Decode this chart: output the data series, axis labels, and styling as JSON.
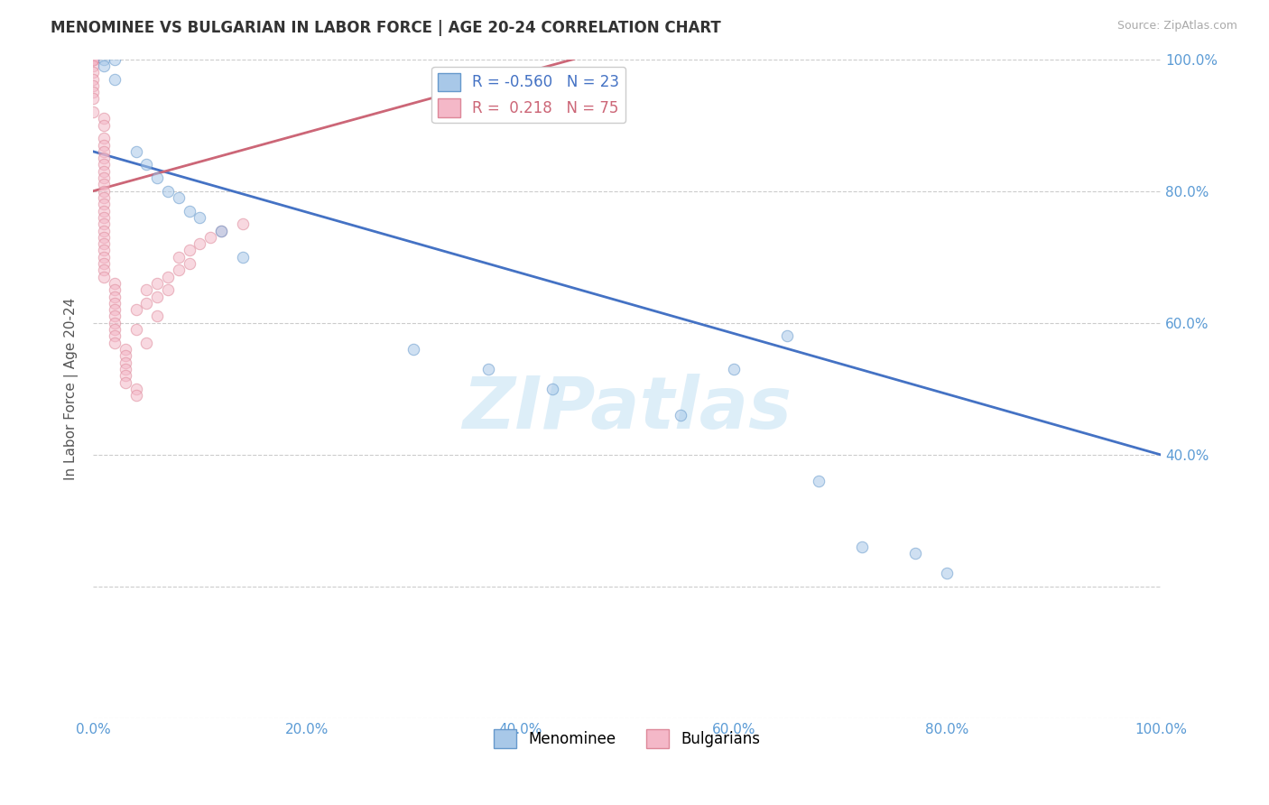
{
  "title": "MENOMINEE VS BULGARIAN IN LABOR FORCE | AGE 20-24 CORRELATION CHART",
  "source": "Source: ZipAtlas.com",
  "ylabel": "In Labor Force | Age 20-24",
  "xlim": [
    0.0,
    1.0
  ],
  "ylim": [
    0.0,
    1.0
  ],
  "xtick_vals": [
    0.0,
    0.2,
    0.4,
    0.6,
    0.8,
    1.0
  ],
  "xtick_labels": [
    "0.0%",
    "20.0%",
    "40.0%",
    "60.0%",
    "80.0%",
    "100.0%"
  ],
  "right_ytick_vals": [
    0.4,
    0.6,
    0.8,
    1.0
  ],
  "right_ytick_labels": [
    "40.0%",
    "60.0%",
    "80.0%",
    "100.0%"
  ],
  "menominee_color": "#a8c8e8",
  "bulgarian_color": "#f4b8c8",
  "menominee_edge_color": "#6699cc",
  "bulgarian_edge_color": "#dd8899",
  "trend_menominee_color": "#4472c4",
  "trend_bulgarian_color": "#cc6677",
  "R_menominee": -0.56,
  "N_menominee": 23,
  "R_bulgarian": 0.218,
  "N_bulgarian": 75,
  "legend_label_menominee": "Menominee",
  "legend_label_bulgarian": "Bulgarians",
  "watermark": "ZIPatlas",
  "background_color": "#ffffff",
  "menominee_x": [
    0.01,
    0.01,
    0.02,
    0.02,
    0.04,
    0.05,
    0.06,
    0.07,
    0.08,
    0.09,
    0.1,
    0.12,
    0.14,
    0.3,
    0.37,
    0.43,
    0.55,
    0.6,
    0.65,
    0.68,
    0.72,
    0.77,
    0.8
  ],
  "menominee_y": [
    1.0,
    0.99,
    1.0,
    0.97,
    0.86,
    0.84,
    0.82,
    0.8,
    0.79,
    0.77,
    0.76,
    0.74,
    0.7,
    0.56,
    0.53,
    0.5,
    0.46,
    0.53,
    0.58,
    0.36,
    0.26,
    0.25,
    0.22
  ],
  "bulgarian_x": [
    0.0,
    0.0,
    0.0,
    0.0,
    0.0,
    0.0,
    0.0,
    0.0,
    0.0,
    0.0,
    0.0,
    0.0,
    0.0,
    0.0,
    0.0,
    0.01,
    0.01,
    0.01,
    0.01,
    0.01,
    0.01,
    0.01,
    0.01,
    0.01,
    0.01,
    0.01,
    0.01,
    0.01,
    0.01,
    0.01,
    0.01,
    0.01,
    0.01,
    0.01,
    0.01,
    0.01,
    0.01,
    0.01,
    0.01,
    0.02,
    0.02,
    0.02,
    0.02,
    0.02,
    0.02,
    0.02,
    0.02,
    0.02,
    0.02,
    0.03,
    0.03,
    0.03,
    0.03,
    0.03,
    0.03,
    0.04,
    0.04,
    0.04,
    0.04,
    0.05,
    0.05,
    0.05,
    0.06,
    0.06,
    0.06,
    0.07,
    0.07,
    0.08,
    0.08,
    0.09,
    0.09,
    0.1,
    0.11,
    0.12,
    0.14
  ],
  "bulgarian_y": [
    1.0,
    1.0,
    1.0,
    1.0,
    1.0,
    1.0,
    1.0,
    1.0,
    0.99,
    0.98,
    0.97,
    0.96,
    0.95,
    0.94,
    0.92,
    0.91,
    0.9,
    0.88,
    0.87,
    0.86,
    0.85,
    0.84,
    0.83,
    0.82,
    0.81,
    0.8,
    0.79,
    0.78,
    0.77,
    0.76,
    0.75,
    0.74,
    0.73,
    0.72,
    0.71,
    0.7,
    0.69,
    0.68,
    0.67,
    0.66,
    0.65,
    0.64,
    0.63,
    0.62,
    0.61,
    0.6,
    0.59,
    0.58,
    0.57,
    0.56,
    0.55,
    0.54,
    0.53,
    0.52,
    0.51,
    0.5,
    0.49,
    0.62,
    0.59,
    0.57,
    0.65,
    0.63,
    0.61,
    0.66,
    0.64,
    0.67,
    0.65,
    0.68,
    0.7,
    0.69,
    0.71,
    0.72,
    0.73,
    0.74,
    0.75
  ],
  "trend_men_x0": 0.0,
  "trend_men_y0": 0.86,
  "trend_men_x1": 1.0,
  "trend_men_y1": 0.4,
  "trend_bul_x0": 0.0,
  "trend_bul_y0": 0.8,
  "trend_bul_x1": 0.45,
  "trend_bul_y1": 1.0,
  "marker_size": 80,
  "marker_alpha": 0.55,
  "trend_linewidth": 2.0,
  "gridline_color": "#cccccc",
  "gridline_style": "--"
}
